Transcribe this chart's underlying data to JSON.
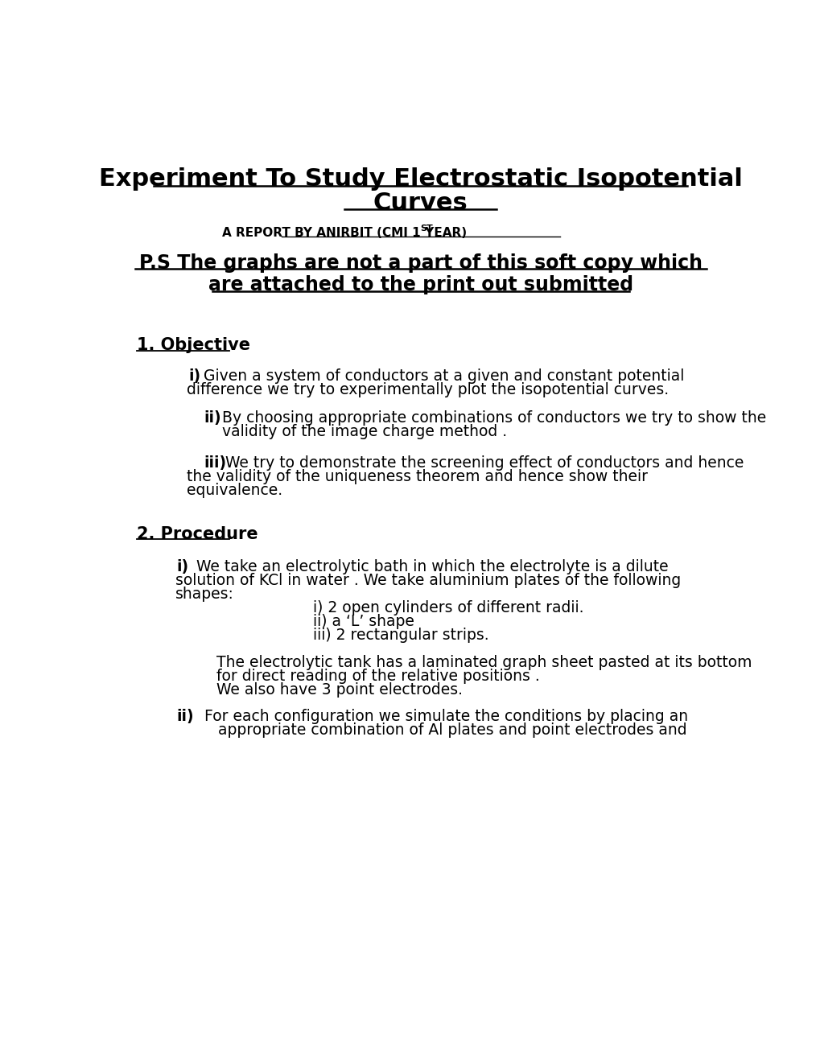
{
  "bg_color": "#ffffff",
  "title_line1": "Experiment To Study Electrostatic Isopotential",
  "title_line2": "Curves",
  "subtitle_before": "A REPORT BY ANIRBIT (CMI 1",
  "subtitle_sup": "ST",
  "subtitle_after": " YEAR)",
  "ps_line1": "P.S The graphs are not a part of this soft copy which",
  "ps_line2": "are attached to the print out submitted",
  "section1_heading": "1. Objective",
  "obj_i_label": "i)",
  "obj_i_text1": "Given a system of conductors at a given and constant potential",
  "obj_i_text2": "difference we try to experimentally plot the isopotential curves.",
  "obj_ii_label": "ii)",
  "obj_ii_text1": "By choosing appropriate combinations of conductors we try to show the",
  "obj_ii_text2": "validity of the image charge method .",
  "obj_iii_label": "iii)",
  "obj_iii_text1": "We try to demonstrate the screening effect of conductors and hence",
  "obj_iii_text2": "the validity of the uniqueness theorem and hence show their",
  "obj_iii_text3": "equivalence.",
  "section2_heading": "2. Procedure",
  "proc_i_label": "i)",
  "proc_i_text1": "We take an electrolytic bath in which the electrolyte is a dilute",
  "proc_i_text2": "solution of KCl in water . We take aluminium plates of the following",
  "proc_i_text3": "shapes:",
  "proc_i_sub1": "i) 2 open cylinders of different radii.",
  "proc_i_sub2": "ii) a ‘L’ shape",
  "proc_i_sub3": "iii) 2 rectangular strips.",
  "proc_i_para1": "The electrolytic tank has a laminated graph sheet pasted at its bottom",
  "proc_i_para2": "for direct reading of the relative positions .",
  "proc_i_para3": " We also have 3 point electrodes.",
  "proc_ii_label": "ii)",
  "proc_ii_text1": "For each configuration we simulate the conditions by placing an",
  "proc_ii_text2": "appropriate combination of Al plates and point electrodes and"
}
